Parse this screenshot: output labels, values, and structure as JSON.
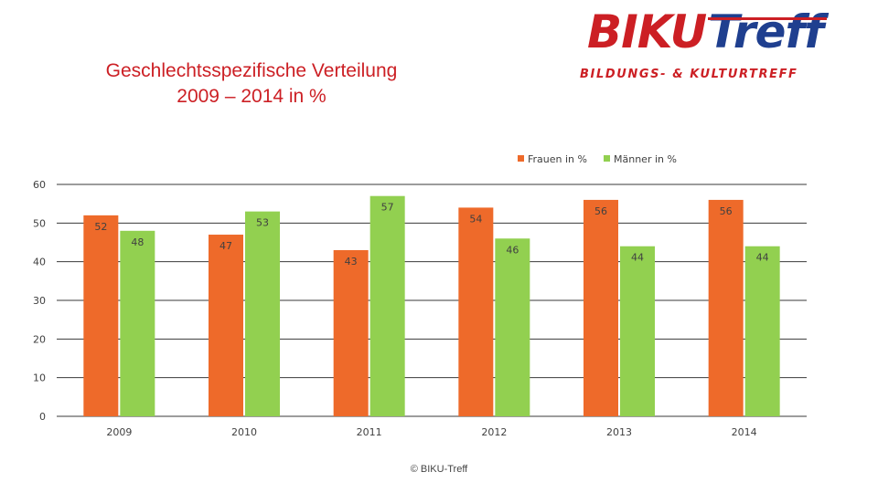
{
  "title": {
    "line1": "Geschlechtsspezifische Verteilung",
    "line2": "2009 – 2014 in %"
  },
  "logo": {
    "brand_part1": "BIKU",
    "brand_part2": "Treff",
    "tagline": "BILDUNGS- & KULTURTREFF",
    "colors": {
      "red": "#cc1f24",
      "blue": "#1f3f8f"
    }
  },
  "chart_data": {
    "type": "bar",
    "title": "Geschlechtsspezifische Verteilung 2009 – 2014 in %",
    "xlabel": "",
    "ylabel": "",
    "categories": [
      "2009",
      "2010",
      "2011",
      "2012",
      "2013",
      "2014"
    ],
    "series": [
      {
        "name": "Frauen in %",
        "color": "#ee6a2a",
        "values": [
          52,
          47,
          43,
          54,
          56,
          56
        ]
      },
      {
        "name": "Männer in %",
        "color": "#92d050",
        "values": [
          48,
          53,
          57,
          46,
          44,
          44
        ]
      }
    ],
    "ylim": [
      0,
      60
    ],
    "yticks": [
      0,
      10,
      20,
      30,
      40,
      50,
      60
    ],
    "grid": true,
    "legend_position": "top-right"
  },
  "footer": {
    "copyright": "© BIKU-Treff"
  }
}
